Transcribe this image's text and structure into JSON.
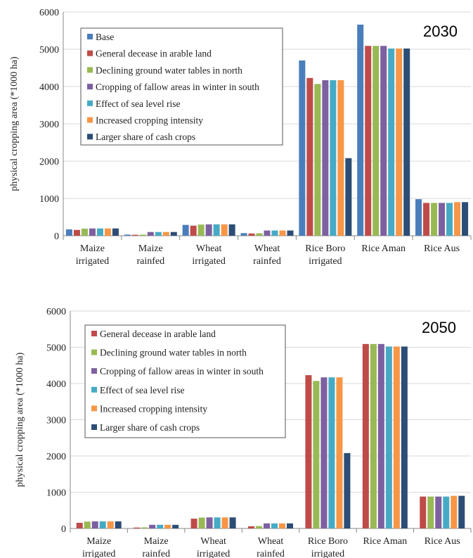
{
  "colors": {
    "Base": "#4a7ebb",
    "General decease in arable land": "#be4b48",
    "Declining ground water tables in north": "#98b954",
    "Cropping of fallow areas in winter in south": "#7d60a0",
    "Effect of sea level rise": "#46aac5",
    "Increased cropping intensity": "#f79646",
    "Larger share of cash crops": "#2c4d75"
  },
  "chart_data": [
    {
      "type": "bar",
      "title": "2030",
      "ylabel": "physical cropping area (*1000 ha)",
      "xlabel": "",
      "ylim": [
        0,
        6000
      ],
      "yticks": [
        0,
        1000,
        2000,
        3000,
        4000,
        5000,
        6000
      ],
      "grid": true,
      "legend": "top-left",
      "categories": [
        [
          "Maize",
          "irrigated"
        ],
        [
          "Maize",
          "rainfed"
        ],
        [
          "Wheat",
          "irrigated"
        ],
        [
          "Wheat",
          "rainfed"
        ],
        [
          "Rice Boro",
          "irrigated"
        ],
        [
          "Rice Aman"
        ],
        [
          "Rice Aus"
        ]
      ],
      "series": [
        {
          "name": "Base",
          "values": [
            170,
            30,
            290,
            70,
            4700,
            5660,
            980
          ]
        },
        {
          "name": "General decease in arable land",
          "values": [
            155,
            25,
            270,
            60,
            4230,
            5090,
            880
          ]
        },
        {
          "name": "Declining ground water tables in north",
          "values": [
            190,
            30,
            300,
            65,
            4070,
            5090,
            880
          ]
        },
        {
          "name": "Cropping of fallow areas in winter in south",
          "values": [
            195,
            100,
            305,
            140,
            4170,
            5090,
            880
          ]
        },
        {
          "name": "Effect of sea level rise",
          "values": [
            195,
            100,
            305,
            140,
            4170,
            5020,
            880
          ]
        },
        {
          "name": "Increased cropping intensity",
          "values": [
            195,
            100,
            305,
            140,
            4170,
            5020,
            900
          ]
        },
        {
          "name": "Larger share of cash crops",
          "values": [
            195,
            100,
            305,
            140,
            2080,
            5020,
            900
          ]
        }
      ]
    },
    {
      "type": "bar",
      "title": "2050",
      "ylabel": "physical cropping area (*1000 ha)",
      "xlabel": "",
      "ylim": [
        0,
        6000
      ],
      "yticks": [
        0,
        1000,
        2000,
        3000,
        4000,
        5000,
        6000
      ],
      "grid": true,
      "legend": "top-left",
      "categories": [
        [
          "Maize",
          "irrigated"
        ],
        [
          "Maize",
          "rainfed"
        ],
        [
          "Wheat",
          "irrigated"
        ],
        [
          "Wheat",
          "rainfed"
        ],
        [
          "Rice Boro",
          "irrigated"
        ],
        [
          "Rice Aman"
        ],
        [
          "Rice Aus"
        ]
      ],
      "series": [
        {
          "name": "General decease in arable land",
          "values": [
            155,
            25,
            270,
            60,
            4230,
            5090,
            880
          ]
        },
        {
          "name": "Declining ground water tables in north",
          "values": [
            190,
            30,
            300,
            65,
            4070,
            5090,
            880
          ]
        },
        {
          "name": "Cropping of fallow areas in winter in south",
          "values": [
            195,
            100,
            305,
            140,
            4170,
            5090,
            880
          ]
        },
        {
          "name": "Effect of sea level rise",
          "values": [
            195,
            100,
            305,
            140,
            4170,
            5020,
            880
          ]
        },
        {
          "name": "Increased cropping intensity",
          "values": [
            195,
            100,
            305,
            140,
            4170,
            5020,
            900
          ]
        },
        {
          "name": "Larger share of cash crops",
          "values": [
            195,
            100,
            305,
            140,
            2080,
            5020,
            900
          ]
        }
      ]
    }
  ]
}
